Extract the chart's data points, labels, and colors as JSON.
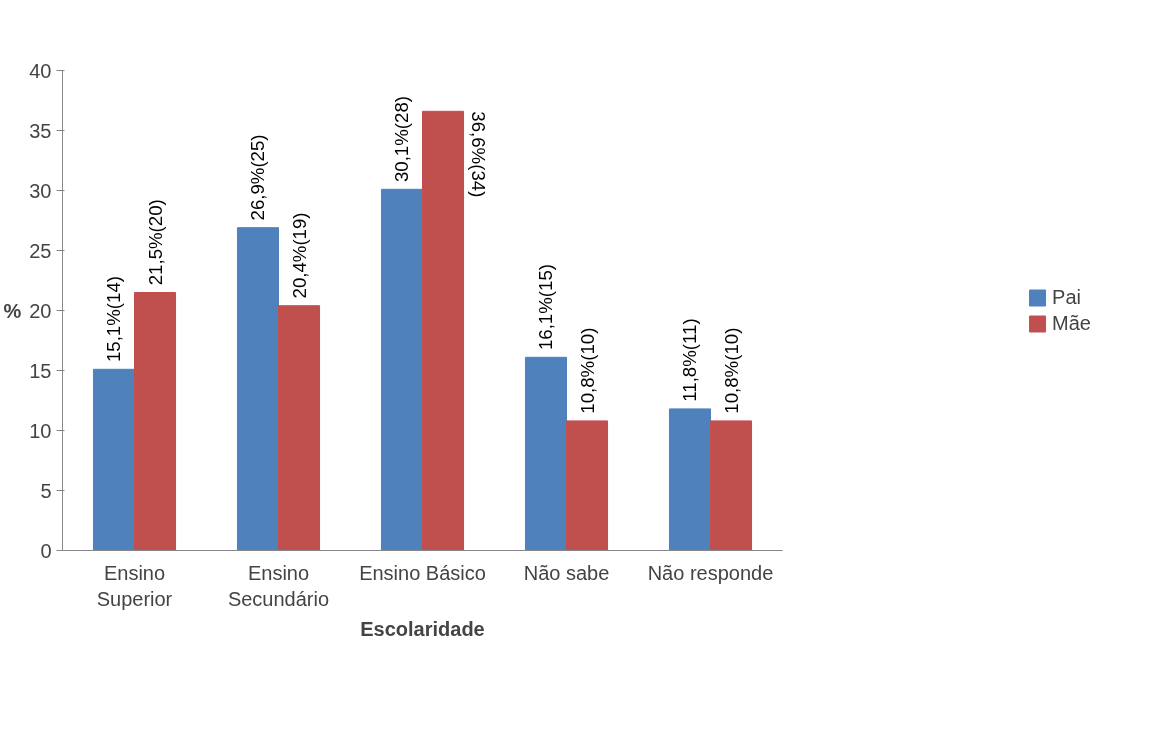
{
  "chart_data": {
    "type": "bar",
    "xlabel": "Escolaridade",
    "ylabel": "%",
    "categories": [
      "Ensino\nSuperior",
      "Ensino\nSecundário",
      "Ensino Básico",
      "Não sabe",
      "Não responde"
    ],
    "series": [
      {
        "name": "Pai",
        "color": "#4f81bd",
        "values": [
          15.1,
          26.9,
          30.1,
          16.1,
          11.8
        ],
        "value_labels": [
          "15,1%(14)",
          "26,9%(25)",
          "30,1%(28)",
          "16,1%(15)",
          "11,8%(11)"
        ]
      },
      {
        "name": "Mãe",
        "color": "#c0504d",
        "values": [
          21.5,
          20.4,
          36.6,
          10.8,
          10.8
        ],
        "value_labels": [
          "21,5%(20)",
          "20,4%(19)",
          "36,6%(34)",
          "10,8%(10)",
          "10,8%(10)"
        ]
      }
    ],
    "ylim": [
      0,
      40
    ],
    "yticks": [
      0,
      5,
      10,
      15,
      20,
      25,
      30,
      35,
      40
    ],
    "grid": false,
    "legend": "right"
  }
}
